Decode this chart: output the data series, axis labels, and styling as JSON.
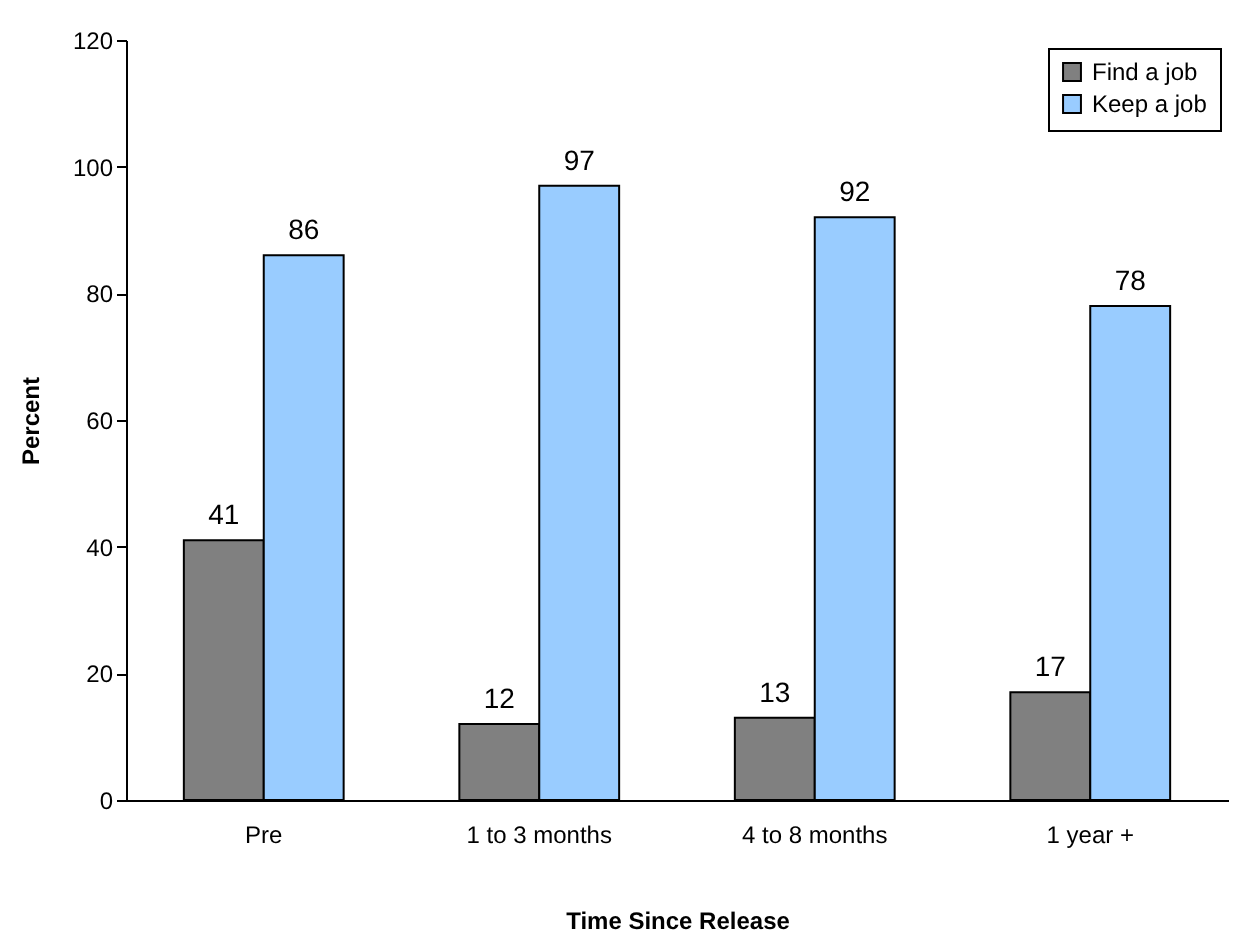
{
  "chart_data": {
    "type": "bar",
    "xlabel": "Time Since Release",
    "ylabel": "Percent",
    "categories": [
      "Pre",
      "1 to 3 months",
      "4 to 8 months",
      "1 year +"
    ],
    "series": [
      {
        "name": "Find a job",
        "color": "#808080",
        "values": [
          41,
          12,
          13,
          17
        ]
      },
      {
        "name": "Keep a job",
        "color": "#99ccff",
        "values": [
          86,
          97,
          92,
          78
        ]
      }
    ],
    "ylim": [
      0,
      120
    ],
    "yticks": [
      0,
      20,
      40,
      60,
      80,
      100,
      120
    ],
    "grid": false,
    "legend": "top right",
    "data_labels": true
  }
}
